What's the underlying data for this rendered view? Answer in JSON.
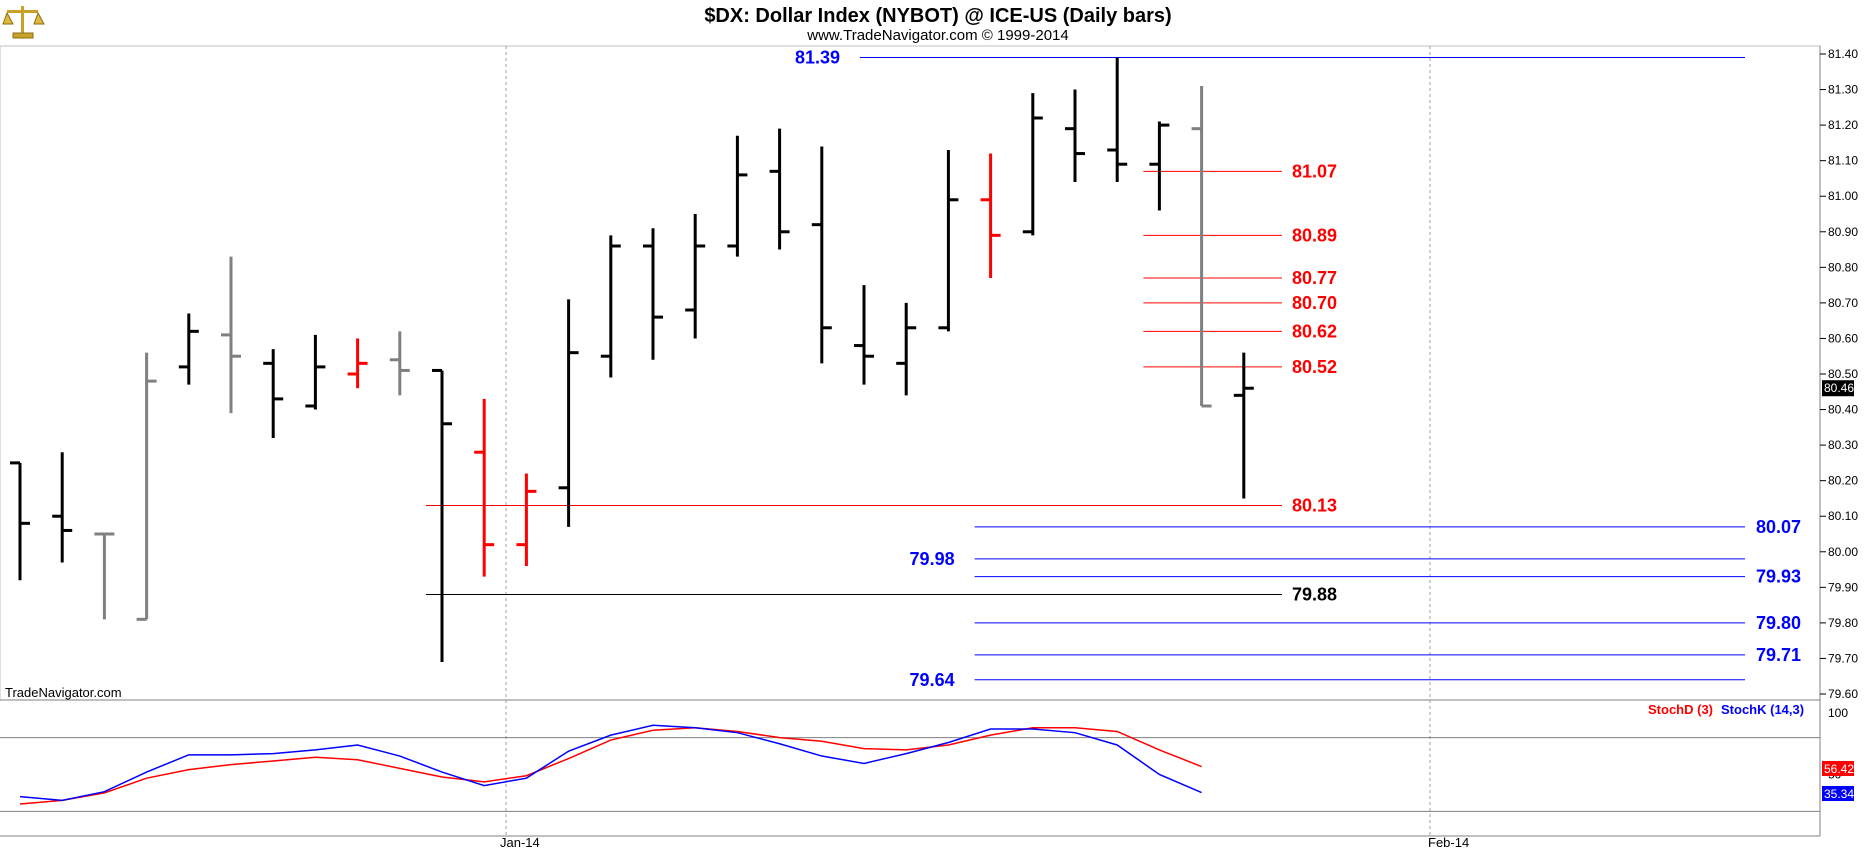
{
  "header": {
    "title": "$DX:  Dollar Index (NYBOT) @ ICE-US  (Daily bars)",
    "subtitle": "www.TradeNavigator.com © 1999-2014",
    "logo_icon": "scales-of-justice-icon"
  },
  "watermark": "TradeNavigator.com",
  "colors": {
    "up": "#000000",
    "down": "#ff0000",
    "neutral": "#808080",
    "blue_level": "#0000ff",
    "red_level": "#ff0000",
    "stochD": "#ff0000",
    "stochK": "#0000ff",
    "last_price_bg": "#000000"
  },
  "chart_data": [
    {
      "type": "ohlc",
      "title": "$DX:  Dollar Index (NYBOT) @ ICE-US  (Daily bars)",
      "ylim": [
        79.56,
        81.44
      ],
      "y_ticks": [
        "81.40",
        "81.30",
        "81.20",
        "81.10",
        "81.00",
        "80.90",
        "80.80",
        "80.70",
        "80.60",
        "80.50",
        "80.40",
        "80.30",
        "80.20",
        "80.10",
        "80.00",
        "79.90",
        "79.80",
        "79.70",
        "79.60"
      ],
      "x_labels": [
        "Jan-14",
        "Feb-14"
      ],
      "grid": "vertical dotted at month starts",
      "last_price": "80.46",
      "bars": [
        {
          "o": 80.25,
          "h": 80.25,
          "l": 79.92,
          "c": 80.08,
          "color": "up"
        },
        {
          "o": 80.1,
          "h": 80.28,
          "l": 79.97,
          "c": 80.06,
          "color": "up"
        },
        {
          "o": 80.05,
          "h": 80.05,
          "l": 79.81,
          "c": 80.05,
          "color": "neutral"
        },
        {
          "o": 79.81,
          "h": 80.56,
          "l": 79.81,
          "c": 80.48,
          "color": "neutral"
        },
        {
          "o": 80.52,
          "h": 80.67,
          "l": 80.47,
          "c": 80.62,
          "color": "up"
        },
        {
          "o": 80.61,
          "h": 80.83,
          "l": 80.39,
          "c": 80.55,
          "color": "neutral"
        },
        {
          "o": 80.53,
          "h": 80.57,
          "l": 80.32,
          "c": 80.43,
          "color": "up"
        },
        {
          "o": 80.41,
          "h": 80.61,
          "l": 80.4,
          "c": 80.52,
          "color": "up"
        },
        {
          "o": 80.5,
          "h": 80.6,
          "l": 80.46,
          "c": 80.53,
          "color": "down"
        },
        {
          "o": 80.54,
          "h": 80.62,
          "l": 80.44,
          "c": 80.51,
          "color": "neutral"
        },
        {
          "o": 80.51,
          "h": 80.51,
          "l": 79.69,
          "c": 80.36,
          "color": "up"
        },
        {
          "o": 80.28,
          "h": 80.43,
          "l": 79.93,
          "c": 80.02,
          "color": "down"
        },
        {
          "o": 80.02,
          "h": 80.22,
          "l": 79.96,
          "c": 80.17,
          "color": "down"
        },
        {
          "o": 80.18,
          "h": 80.71,
          "l": 80.07,
          "c": 80.56,
          "color": "up"
        },
        {
          "o": 80.55,
          "h": 80.89,
          "l": 80.49,
          "c": 80.86,
          "color": "up"
        },
        {
          "o": 80.86,
          "h": 80.91,
          "l": 80.54,
          "c": 80.66,
          "color": "up"
        },
        {
          "o": 80.68,
          "h": 80.95,
          "l": 80.6,
          "c": 80.86,
          "color": "up"
        },
        {
          "o": 80.86,
          "h": 81.17,
          "l": 80.83,
          "c": 81.06,
          "color": "up"
        },
        {
          "o": 81.07,
          "h": 81.19,
          "l": 80.85,
          "c": 80.9,
          "color": "up"
        },
        {
          "o": 80.92,
          "h": 81.14,
          "l": 80.53,
          "c": 80.63,
          "color": "up"
        },
        {
          "o": 80.58,
          "h": 80.75,
          "l": 80.47,
          "c": 80.55,
          "color": "up"
        },
        {
          "o": 80.53,
          "h": 80.7,
          "l": 80.44,
          "c": 80.63,
          "color": "up"
        },
        {
          "o": 80.63,
          "h": 81.13,
          "l": 80.62,
          "c": 80.99,
          "color": "up"
        },
        {
          "o": 80.99,
          "h": 81.12,
          "l": 80.77,
          "c": 80.89,
          "color": "down"
        },
        {
          "o": 80.9,
          "h": 81.29,
          "l": 80.89,
          "c": 81.22,
          "color": "up"
        },
        {
          "o": 81.19,
          "h": 81.3,
          "l": 81.04,
          "c": 81.12,
          "color": "up"
        },
        {
          "o": 81.13,
          "h": 81.39,
          "l": 81.04,
          "c": 81.09,
          "color": "up"
        },
        {
          "o": 81.09,
          "h": 81.21,
          "l": 80.96,
          "c": 81.2,
          "color": "up"
        },
        {
          "o": 81.19,
          "h": 81.31,
          "l": 80.41,
          "c": 80.41,
          "color": "neutral"
        },
        {
          "o": 80.44,
          "h": 80.56,
          "l": 80.15,
          "c": 80.46,
          "color": "up"
        }
      ],
      "levels": [
        {
          "value": 81.39,
          "label": "81.39",
          "color": "blue",
          "label_side": "left",
          "from_bar": 0,
          "to_bar": 40
        },
        {
          "value": 81.07,
          "label": "81.07",
          "color": "red",
          "label_side": "right",
          "from_bar": 27,
          "to_bar": 32
        },
        {
          "value": 80.89,
          "label": "80.89",
          "color": "red",
          "label_side": "right",
          "from_bar": 27,
          "to_bar": 32
        },
        {
          "value": 80.77,
          "label": "80.77",
          "color": "red",
          "label_side": "right",
          "from_bar": 27,
          "to_bar": 32
        },
        {
          "value": 80.7,
          "label": "80.70",
          "color": "red",
          "label_side": "right",
          "from_bar": 27,
          "to_bar": 32
        },
        {
          "value": 80.62,
          "label": "80.62",
          "color": "red",
          "label_side": "right",
          "from_bar": 27,
          "to_bar": 32
        },
        {
          "value": 80.52,
          "label": "80.52",
          "color": "red",
          "label_side": "right",
          "from_bar": 27,
          "to_bar": 32
        },
        {
          "value": 80.13,
          "label": "80.13",
          "color": "red",
          "label_side": "right",
          "from_bar": 10,
          "to_bar": 32
        },
        {
          "value": 80.07,
          "label": "80.07",
          "color": "blue",
          "label_side": "far_right",
          "from_bar": 23,
          "to_bar": 40
        },
        {
          "value": 79.98,
          "label": "79.98",
          "color": "blue",
          "label_side": "left",
          "from_bar": 23,
          "to_bar": 40
        },
        {
          "value": 79.93,
          "label": "79.93",
          "color": "blue",
          "label_side": "far_right",
          "from_bar": 23,
          "to_bar": 40
        },
        {
          "value": 79.88,
          "label": "79.88",
          "color": "black",
          "label_side": "right",
          "from_bar": 10,
          "to_bar": 32
        },
        {
          "value": 79.8,
          "label": "79.80",
          "color": "blue",
          "label_side": "far_right",
          "from_bar": 23,
          "to_bar": 40
        },
        {
          "value": 79.71,
          "label": "79.71",
          "color": "blue",
          "label_side": "far_right",
          "from_bar": 23,
          "to_bar": 40
        },
        {
          "value": 79.64,
          "label": "79.64",
          "color": "blue",
          "label_side": "left",
          "from_bar": 23,
          "to_bar": 40
        }
      ]
    },
    {
      "type": "line",
      "title": "",
      "ylim": [
        0,
        120
      ],
      "y_ticks": [
        "100",
        "50"
      ],
      "reference_lines": [
        80,
        20
      ],
      "series": [
        {
          "name": "StochD (3)",
          "color": "#ff0000",
          "last": "56.42",
          "values": [
            26,
            29,
            35,
            47,
            54,
            58,
            61,
            64,
            62,
            55,
            48,
            44,
            49,
            63,
            78,
            86,
            88,
            85,
            80,
            77,
            71,
            70,
            74,
            82,
            88,
            88,
            85,
            70,
            56.42
          ]
        },
        {
          "name": "StochK (14,3)",
          "color": "#0000ff",
          "last": "35.34",
          "values": [
            32,
            29,
            36,
            52,
            66,
            66,
            67,
            70,
            74,
            65,
            52,
            41,
            47,
            69,
            82,
            90,
            88,
            84,
            75,
            65,
            59,
            67,
            76,
            87,
            87,
            84,
            74,
            50,
            35.34
          ]
        }
      ]
    }
  ]
}
